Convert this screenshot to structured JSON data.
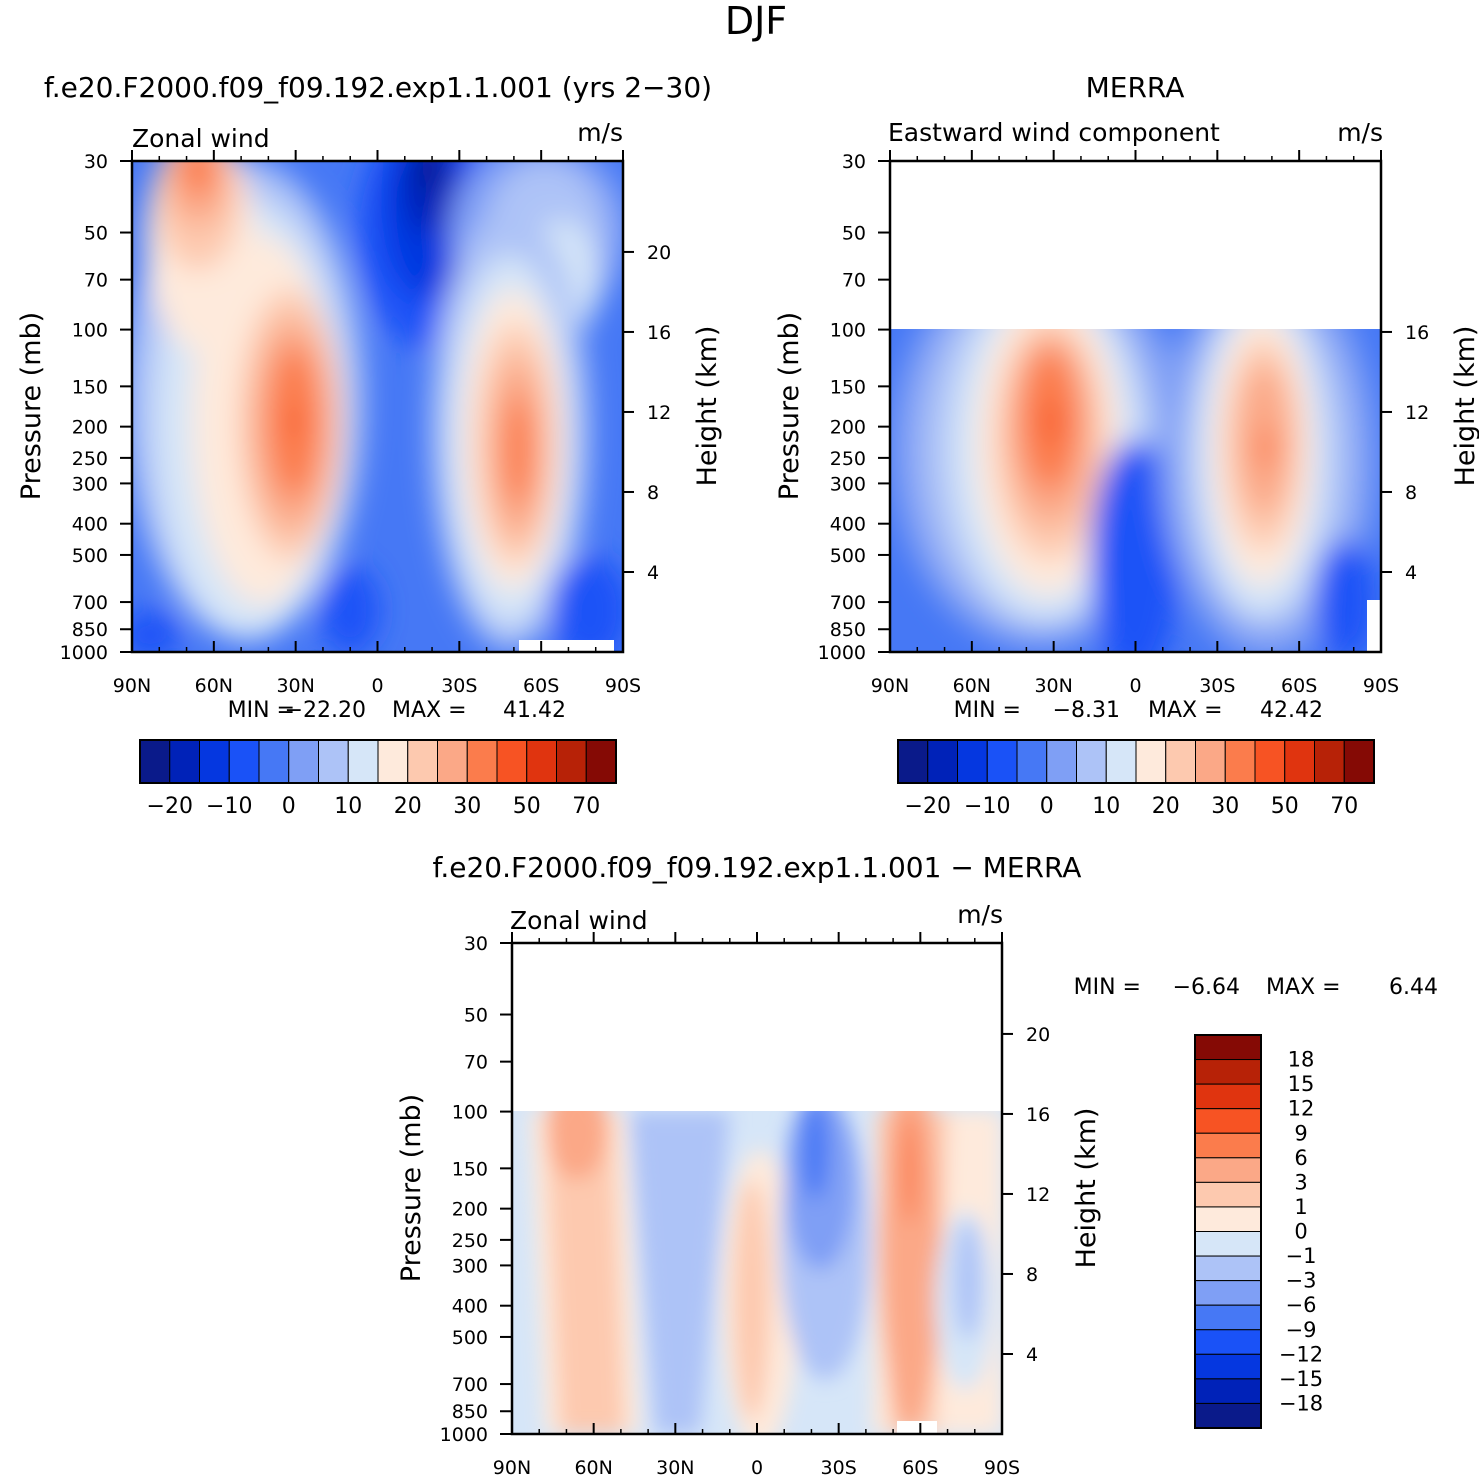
{
  "page": {
    "title": "DJF"
  },
  "panels": [
    {
      "id": "model",
      "header": "f.e20.F2000.f09_f09.192.exp1.1.001 (yrs 2−30)",
      "left_title": "Zonal wind",
      "right_title": "m/s",
      "min_label": "MIN =",
      "min_value": "−22.20",
      "max_label": "MAX =",
      "max_value": "41.42"
    },
    {
      "id": "merra",
      "header": "MERRA",
      "left_title": "Eastward wind component",
      "right_title": "m/s",
      "min_label": "MIN =",
      "min_value": "−8.31",
      "max_label": "MAX =",
      "max_value": "42.42"
    },
    {
      "id": "diff",
      "header": "f.e20.F2000.f09_f09.192.exp1.1.001 − MERRA",
      "left_title": "Zonal wind",
      "right_title": "m/s",
      "min_label": "MIN =",
      "min_value": "−6.64",
      "max_label": "MAX =",
      "max_value": "6.44"
    }
  ],
  "axes": {
    "ylabel": "Pressure (mb)",
    "ylabel_right": "Height (km)",
    "lat_ticks": [
      "90N",
      "60N",
      "30N",
      "0",
      "30S",
      "60S",
      "90S"
    ],
    "pressure_ticks": [
      "30",
      "50",
      "70",
      "100",
      "150",
      "200",
      "250",
      "300",
      "400",
      "500",
      "700",
      "850",
      "1000"
    ],
    "height_ticks_model": [
      "20",
      "16",
      "12",
      "8",
      "4"
    ],
    "height_ticks_merra": [
      "16",
      "12",
      "8",
      "4"
    ],
    "height_ticks_diff": [
      "20",
      "16",
      "12",
      "8",
      "4"
    ]
  },
  "colorbars": {
    "field": {
      "colors": [
        "#0a1a8a",
        "#0022b8",
        "#0537e0",
        "#1a52f7",
        "#4678f5",
        "#7f9ff5",
        "#adc3f7",
        "#d6e6f8",
        "#feeadc",
        "#fdc9af",
        "#fba887",
        "#fb7c4c",
        "#f75323",
        "#e0340f",
        "#b72207",
        "#850a05"
      ],
      "labels": [
        "−20",
        "−10",
        "0",
        "10",
        "20",
        "30",
        "50",
        "70"
      ]
    },
    "diff": {
      "colors": [
        "#850a05",
        "#b72207",
        "#e0340f",
        "#f75323",
        "#fb7c4c",
        "#fba887",
        "#fdc9af",
        "#feeadc",
        "#d6e6f8",
        "#adc3f7",
        "#7f9ff5",
        "#4678f5",
        "#1a52f7",
        "#0537e0",
        "#0022b8",
        "#0a1a8a"
      ],
      "labels": [
        "18",
        "15",
        "12",
        "9",
        "6",
        "3",
        "1",
        "0",
        "−1",
        "−3",
        "−6",
        "−9",
        "−12",
        "−15",
        "−18"
      ]
    }
  },
  "chart_data": [
    {
      "type": "heatmap",
      "title": "Zonal wind",
      "units": "m/s",
      "xlabel": "",
      "ylabel": "Pressure (mb)",
      "x_range": [
        "90N",
        "90S"
      ],
      "y_range_mb": [
        1000,
        30
      ],
      "min": -22.2,
      "max": 41.42,
      "features": [
        {
          "kind": "jet",
          "lat": 30,
          "p_mb": 200,
          "value": 41
        },
        {
          "kind": "jet",
          "lat": -50,
          "p_mb": 230,
          "value": 35
        },
        {
          "kind": "jet",
          "lat": 62,
          "p_mb": 30,
          "value": 30
        },
        {
          "kind": "easterly",
          "lat": -17,
          "p_mb": 30,
          "value": -22
        }
      ]
    },
    {
      "type": "heatmap",
      "title": "Eastward wind component",
      "units": "m/s",
      "xlabel": "",
      "ylabel": "Pressure (mb)",
      "x_range": [
        "90N",
        "90S"
      ],
      "y_range_mb": [
        1000,
        100
      ],
      "min": -8.31,
      "max": 42.42,
      "features": [
        {
          "kind": "jet",
          "lat": 30,
          "p_mb": 200,
          "value": 42
        },
        {
          "kind": "jet",
          "lat": -47,
          "p_mb": 230,
          "value": 32
        }
      ]
    },
    {
      "type": "heatmap",
      "title": "Zonal wind",
      "units": "m/s",
      "xlabel": "",
      "ylabel": "Pressure (mb)",
      "x_range": [
        "90N",
        "90S"
      ],
      "y_range_mb": [
        1000,
        100
      ],
      "min": -6.64,
      "max": 6.44,
      "features": [
        {
          "kind": "positive",
          "lat": 63,
          "p_mb": 130,
          "value": 5
        },
        {
          "kind": "positive",
          "lat": -57,
          "p_mb": 170,
          "value": 6
        },
        {
          "kind": "negative",
          "lat": -22,
          "p_mb": 130,
          "value": -6
        },
        {
          "kind": "positive",
          "lat": 0,
          "p_mb": 600,
          "value": 3
        }
      ]
    }
  ]
}
